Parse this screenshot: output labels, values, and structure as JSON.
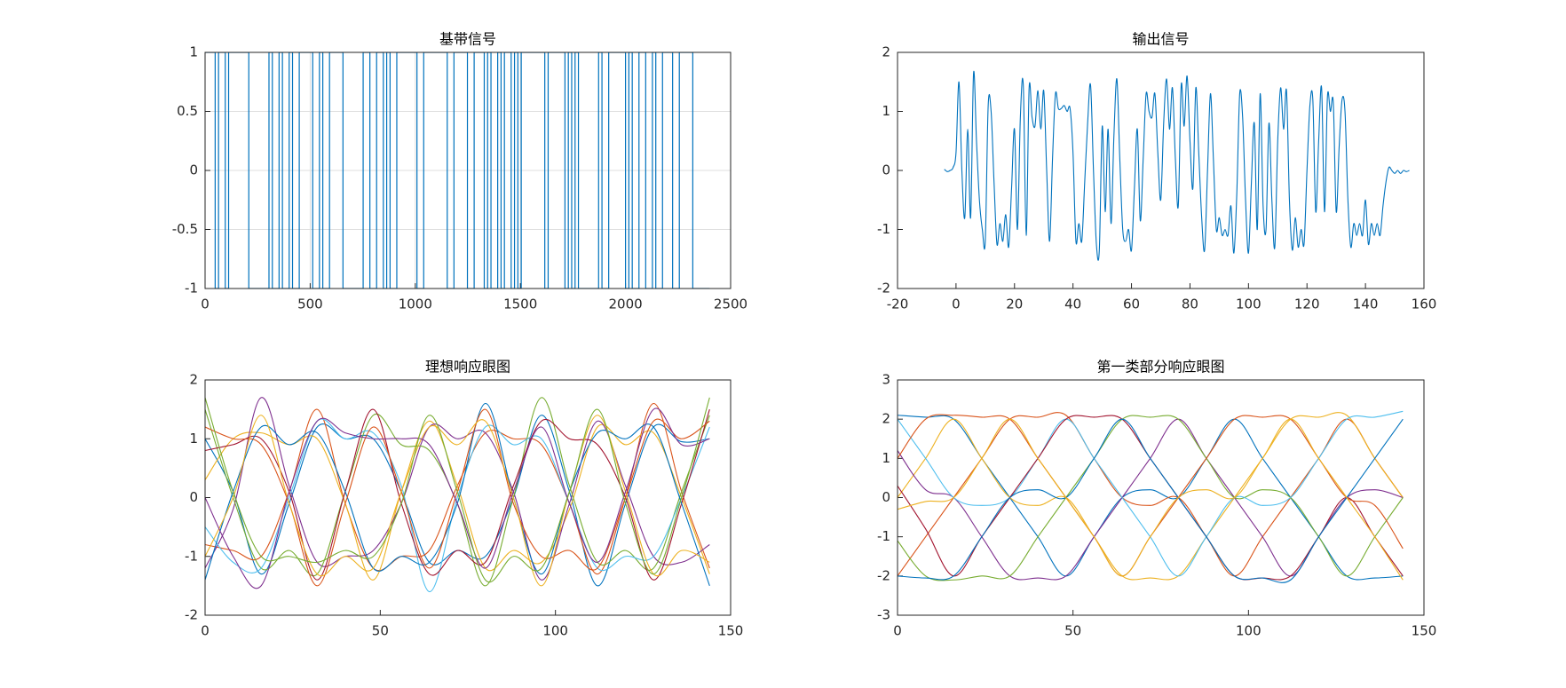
{
  "chart_data": [
    {
      "type": "step",
      "title": "基带信号",
      "color": "#0072BD",
      "grid": true,
      "xlim": [
        0,
        2500
      ],
      "ylim": [
        -1,
        1
      ],
      "xticks": [
        0,
        500,
        1000,
        1500,
        2000,
        2500
      ],
      "yticks": [
        -1,
        -0.5,
        0,
        0.5,
        1
      ],
      "x": [
        0,
        48,
        64,
        96,
        112,
        208,
        304,
        320,
        352,
        368,
        400,
        416,
        448,
        512,
        544,
        560,
        592,
        656,
        752,
        784,
        816,
        848,
        864,
        880,
        912,
        1008,
        1040,
        1152,
        1184,
        1248,
        1280,
        1328,
        1344,
        1360,
        1392,
        1408,
        1424,
        1456,
        1472,
        1488,
        1504,
        1616,
        1632,
        1712,
        1728,
        1744,
        1760,
        1776,
        1872,
        1888,
        1920,
        2000,
        2016,
        2032,
        2064,
        2096,
        2128,
        2144,
        2176,
        2224,
        2256,
        2320,
        2400
      ],
      "values": [
        1,
        -1,
        1,
        -1,
        1,
        -1,
        1,
        -1,
        1,
        -1,
        1,
        -1,
        1,
        -1,
        1,
        -1,
        1,
        -1,
        1,
        -1,
        1,
        -1,
        1,
        -1,
        1,
        -1,
        1,
        -1,
        1,
        -1,
        1,
        -1,
        1,
        -1,
        1,
        -1,
        1,
        -1,
        1,
        -1,
        1,
        -1,
        1,
        -1,
        1,
        -1,
        1,
        -1,
        1,
        -1,
        1,
        -1,
        1,
        -1,
        1,
        -1,
        1,
        -1,
        1,
        -1,
        1,
        -1,
        -1
      ]
    },
    {
      "type": "line",
      "title": "输出信号",
      "color": "#0072BD",
      "grid": false,
      "xlim": [
        -20,
        160
      ],
      "ylim": [
        -2,
        2
      ],
      "xticks": [
        -20,
        0,
        20,
        40,
        60,
        80,
        100,
        120,
        140,
        160
      ],
      "yticks": [
        -2,
        -1,
        0,
        1,
        2
      ],
      "x": [
        -4,
        -3,
        -2,
        -1,
        0,
        1,
        2,
        3,
        4,
        5,
        6,
        7,
        8,
        9,
        10,
        11,
        12,
        13,
        14,
        15,
        16,
        17,
        18,
        19,
        20,
        21,
        22,
        23,
        24,
        25,
        26,
        27,
        28,
        29,
        30,
        31,
        32,
        33,
        34,
        35,
        36,
        37,
        38,
        39,
        40,
        41,
        42,
        43,
        44,
        45,
        46,
        47,
        48,
        49,
        50,
        51,
        52,
        53,
        54,
        55,
        56,
        57,
        58,
        59,
        60,
        61,
        62,
        63,
        64,
        65,
        66,
        67,
        68,
        69,
        70,
        71,
        72,
        73,
        74,
        75,
        76,
        77,
        78,
        79,
        80,
        81,
        82,
        83,
        84,
        85,
        86,
        87,
        88,
        89,
        90,
        91,
        92,
        93,
        94,
        95,
        96,
        97,
        98,
        99,
        100,
        101,
        102,
        103,
        104,
        105,
        106,
        107,
        108,
        109,
        110,
        111,
        112,
        113,
        114,
        115,
        116,
        117,
        118,
        119,
        120,
        121,
        122,
        123,
        124,
        125,
        126,
        127,
        128,
        129,
        130,
        131,
        132,
        133,
        134,
        135,
        136,
        137,
        138,
        139,
        140,
        141,
        142,
        143,
        144,
        145,
        146,
        147,
        148,
        149,
        150,
        151,
        152,
        153,
        154,
        155
      ],
      "values": [
        0.02,
        -0.02,
        0.0,
        0.05,
        0.3,
        1.5,
        0.0,
        -0.8,
        0.7,
        -0.8,
        1.65,
        0.5,
        -0.5,
        -1.0,
        -1.2,
        1.1,
        1.0,
        -0.2,
        -1.25,
        -0.9,
        -1.2,
        -0.75,
        -1.3,
        -0.3,
        0.7,
        -1.0,
        0.9,
        1.45,
        -1.1,
        1.4,
        0.9,
        0.75,
        1.35,
        0.7,
        1.35,
        0.0,
        -1.2,
        0.2,
        1.3,
        1.05,
        1.05,
        1.1,
        1.0,
        1.05,
        0.3,
        -1.2,
        -0.9,
        -1.2,
        -0.2,
        0.8,
        1.45,
        0.0,
        -1.25,
        -1.35,
        0.75,
        -0.7,
        0.7,
        -0.9,
        0.6,
        1.55,
        0.2,
        -1.0,
        -1.2,
        -1.0,
        -1.35,
        -0.3,
        0.7,
        -0.85,
        0.2,
        1.3,
        1.0,
        0.9,
        1.3,
        0.3,
        -0.5,
        0.8,
        1.55,
        0.7,
        1.4,
        0.2,
        -0.6,
        1.45,
        0.75,
        1.6,
        0.5,
        -0.3,
        1.4,
        0.3,
        -0.8,
        -1.35,
        0.0,
        1.3,
        0.2,
        -1.0,
        -0.8,
        -1.1,
        -1.0,
        -1.1,
        -0.6,
        -1.4,
        -0.4,
        1.3,
        0.9,
        -0.5,
        -1.4,
        -0.2,
        0.8,
        -1.0,
        1.3,
        -0.6,
        -1.0,
        0.8,
        -0.5,
        -1.3,
        0.5,
        1.4,
        0.7,
        1.35,
        -0.5,
        -1.35,
        -0.8,
        -1.3,
        -1.0,
        -1.25,
        0.0,
        1.1,
        1.2,
        -0.7,
        0.5,
        1.4,
        -0.7,
        1.25,
        1.0,
        1.15,
        -0.7,
        0.4,
        1.2,
        1.0,
        -0.5,
        -1.3,
        -0.9,
        -1.1,
        -0.9,
        -1.1,
        -0.5,
        -1.25,
        -0.9,
        -1.1,
        -0.9,
        -1.1,
        -0.6,
        -0.2,
        0.05,
        0.0,
        -0.05,
        0.0,
        -0.05,
        0.0,
        -0.02,
        0.0
      ]
    },
    {
      "type": "line",
      "title": "理想响应眼图",
      "grid": false,
      "xlim": [
        0,
        150
      ],
      "ylim": [
        -2,
        2
      ],
      "xticks": [
        0,
        50,
        100,
        150
      ],
      "yticks": [
        -2,
        -1,
        0,
        1,
        2
      ],
      "x": [
        0,
        8,
        16,
        24,
        32,
        40,
        48,
        56,
        64,
        72,
        80,
        88,
        96,
        104,
        112,
        120,
        128,
        136,
        144
      ],
      "series": [
        {
          "color": "#0072BD",
          "values": [
            1.0,
            0.1,
            -1.3,
            -0.1,
            1.2,
            1.0,
            1.0,
            0.1,
            -1.1,
            -0.9,
            -1.0,
            0.0,
            1.4,
            0.1,
            -1.5,
            -0.1,
            1.2,
            0.95,
            1.0
          ]
        },
        {
          "color": "#D95319",
          "values": [
            -0.8,
            -0.9,
            -1.0,
            0.1,
            1.5,
            -0.1,
            -1.2,
            -1.0,
            -0.9,
            0.2,
            1.1,
            1.0,
            0.9,
            -0.1,
            -1.3,
            0.0,
            1.6,
            0.1,
            -1.2
          ]
        },
        {
          "color": "#EDB120",
          "values": [
            0.3,
            1.0,
            1.1,
            0.9,
            1.0,
            -0.1,
            -1.4,
            0.1,
            1.3,
            0.2,
            -1.2,
            -0.9,
            -1.1,
            -0.2,
            1.2,
            0.9,
            1.1,
            0.0,
            -1.3
          ]
        },
        {
          "color": "#7E2F8E",
          "values": [
            -1.2,
            -0.2,
            1.7,
            0.2,
            -1.1,
            -1.0,
            -0.9,
            -0.1,
            1.2,
            1.0,
            1.1,
            0.1,
            -1.4,
            -0.1,
            1.3,
            0.2,
            -1.0,
            -1.1,
            -0.8
          ]
        },
        {
          "color": "#77AC30",
          "values": [
            1.5,
            0.0,
            -1.2,
            -0.9,
            -1.3,
            0.1,
            1.4,
            0.9,
            0.8,
            -0.1,
            -1.5,
            0.0,
            1.7,
            0.2,
            -1.1,
            -0.9,
            -1.2,
            0.1,
            1.4
          ]
        },
        {
          "color": "#4DBEEE",
          "values": [
            -0.5,
            -1.1,
            -1.2,
            0.0,
            1.3,
            1.0,
            1.1,
            0.2,
            -1.6,
            0.0,
            1.2,
            0.9,
            1.0,
            -0.1,
            -1.2,
            -1.0,
            -1.0,
            0.0,
            1.2
          ]
        },
        {
          "color": "#A2142F",
          "values": [
            0.8,
            0.9,
            1.0,
            0.1,
            -1.4,
            0.1,
            1.5,
            -0.1,
            -1.3,
            -0.9,
            -1.1,
            0.2,
            1.3,
            1.0,
            0.9,
            0.0,
            -1.4,
            -0.1,
            1.5
          ]
        },
        {
          "color": "#0072BD",
          "values": [
            -1.4,
            0.1,
            1.2,
            0.9,
            1.1,
            0.1,
            -1.2,
            -1.0,
            -1.1,
            -0.1,
            1.6,
            0.0,
            -1.3,
            0.1,
            1.1,
            1.0,
            1.2,
            -0.1,
            -1.5
          ]
        },
        {
          "color": "#D95319",
          "values": [
            1.2,
            1.0,
            0.9,
            -0.1,
            -1.5,
            -0.1,
            1.2,
            0.1,
            -1.2,
            0.1,
            1.5,
            -0.1,
            -1.0,
            -0.9,
            -1.2,
            0.0,
            1.3,
            1.0,
            1.3
          ]
        },
        {
          "color": "#EDB120",
          "values": [
            -1.0,
            0.0,
            1.4,
            -0.1,
            -1.3,
            -1.0,
            -1.2,
            0.1,
            1.2,
            0.9,
            1.3,
            0.0,
            -1.5,
            0.1,
            1.4,
            0.1,
            -1.3,
            -0.9,
            -1.1
          ]
        },
        {
          "color": "#7E2F8E",
          "values": [
            0.0,
            -1.0,
            -1.5,
            0.1,
            1.3,
            1.1,
            1.0,
            1.0,
            0.9,
            -0.1,
            -1.2,
            0.1,
            1.2,
            -0.1,
            -1.1,
            0.1,
            1.5,
            0.9,
            1.0
          ]
        },
        {
          "color": "#77AC30",
          "values": [
            1.7,
            0.1,
            -1.0,
            -1.0,
            -1.1,
            -0.9,
            -1.0,
            -0.1,
            1.4,
            0.1,
            -1.4,
            -1.0,
            -1.2,
            0.1,
            1.5,
            -0.1,
            -1.3,
            0.0,
            1.7
          ]
        }
      ]
    },
    {
      "type": "line",
      "title": "第一类部分响应眼图",
      "grid": false,
      "xlim": [
        0,
        150
      ],
      "ylim": [
        -3,
        3
      ],
      "xticks": [
        0,
        50,
        100,
        150
      ],
      "yticks": [
        -3,
        -2,
        -1,
        0,
        1,
        2,
        3
      ],
      "x": [
        0,
        8,
        16,
        24,
        32,
        40,
        48,
        56,
        64,
        72,
        80,
        88,
        96,
        104,
        112,
        120,
        128,
        136,
        144
      ],
      "series": [
        {
          "color": "#0072BD",
          "values": [
            2.1,
            2.05,
            2.0,
            1.0,
            0.0,
            -1.0,
            -2.0,
            -1.0,
            0.0,
            0.2,
            0.0,
            1.0,
            2.0,
            1.0,
            0.0,
            -1.0,
            -2.0,
            -2.05,
            -2.0
          ]
        },
        {
          "color": "#D95319",
          "values": [
            -2.0,
            -1.0,
            0.0,
            1.0,
            2.0,
            2.05,
            2.1,
            1.0,
            0.0,
            -0.2,
            0.0,
            -1.0,
            -2.0,
            -1.0,
            0.0,
            1.0,
            2.0,
            1.0,
            0.0
          ]
        },
        {
          "color": "#EDB120",
          "values": [
            0.0,
            1.0,
            2.0,
            1.0,
            0.0,
            -0.2,
            0.0,
            -1.0,
            -2.0,
            -2.05,
            -2.0,
            -1.0,
            0.0,
            1.0,
            2.0,
            2.05,
            2.1,
            1.0,
            0.0
          ]
        },
        {
          "color": "#7E2F8E",
          "values": [
            1.2,
            0.2,
            0.0,
            -1.0,
            -2.0,
            -2.05,
            -2.0,
            -1.0,
            0.0,
            1.0,
            2.0,
            1.0,
            0.0,
            -1.0,
            -2.0,
            -1.0,
            0.0,
            0.2,
            0.0
          ]
        },
        {
          "color": "#77AC30",
          "values": [
            -1.1,
            -2.0,
            -2.1,
            -2.0,
            -2.0,
            -1.0,
            0.0,
            1.0,
            2.0,
            2.05,
            2.0,
            1.0,
            0.0,
            0.2,
            0.0,
            -1.0,
            -2.0,
            -1.0,
            0.0
          ]
        },
        {
          "color": "#4DBEEE",
          "values": [
            2.0,
            1.0,
            0.0,
            -0.2,
            0.0,
            1.0,
            2.0,
            1.0,
            0.0,
            -1.0,
            -2.0,
            -1.0,
            0.0,
            -0.2,
            0.0,
            1.0,
            2.0,
            2.05,
            2.2
          ]
        },
        {
          "color": "#A2142F",
          "values": [
            0.3,
            -0.8,
            -2.0,
            -1.0,
            0.0,
            1.0,
            2.0,
            2.05,
            2.0,
            1.0,
            0.0,
            -1.0,
            -2.0,
            -2.05,
            -2.0,
            -1.0,
            0.0,
            -1.0,
            -2.0
          ]
        },
        {
          "color": "#0072BD",
          "values": [
            -2.0,
            -2.05,
            -2.0,
            -1.0,
            0.0,
            0.2,
            0.0,
            1.0,
            2.0,
            1.0,
            0.0,
            -1.0,
            -2.0,
            -2.05,
            -2.1,
            -1.0,
            0.0,
            1.0,
            2.0
          ]
        },
        {
          "color": "#D95319",
          "values": [
            1.0,
            2.0,
            2.1,
            2.05,
            2.0,
            1.0,
            0.0,
            -1.0,
            -2.0,
            -1.0,
            0.0,
            1.0,
            2.0,
            2.05,
            2.0,
            1.0,
            0.0,
            -0.2,
            -1.3
          ]
        },
        {
          "color": "#EDB120",
          "values": [
            -0.3,
            -0.1,
            0.0,
            1.0,
            2.0,
            1.0,
            0.0,
            -1.0,
            -2.0,
            -1.0,
            0.0,
            0.2,
            0.0,
            1.0,
            2.0,
            1.0,
            0.0,
            -1.0,
            -2.1
          ]
        }
      ]
    }
  ]
}
